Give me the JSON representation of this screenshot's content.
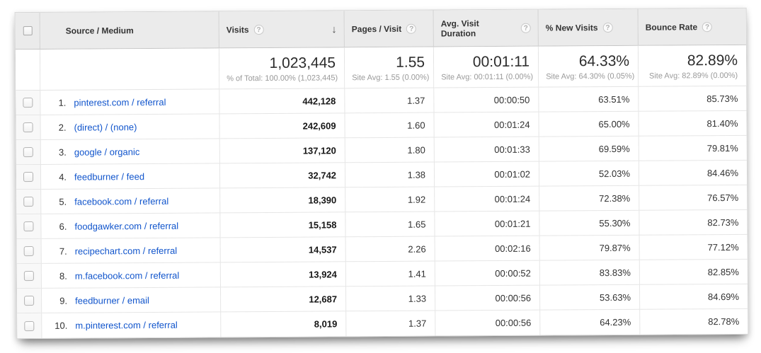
{
  "colors": {
    "link": "#1155cc",
    "header_bg": "#ebebeb",
    "row_border": "#e6e6e6",
    "value_text": "#333333",
    "muted_text": "#9a9a9a"
  },
  "icons": {
    "help": "?",
    "sort_descending": "↓"
  },
  "table": {
    "columns": [
      {
        "key": "source",
        "label": "Source / Medium"
      },
      {
        "key": "visits",
        "label": "Visits"
      },
      {
        "key": "pages",
        "label": "Pages / Visit"
      },
      {
        "key": "duration",
        "label": "Avg. Visit Duration"
      },
      {
        "key": "new_visits",
        "label": "% New Visits"
      },
      {
        "key": "bounce",
        "label": "Bounce Rate"
      }
    ],
    "sorted_column": "visits",
    "sort_direction": "descending",
    "summary": {
      "visits": {
        "value": "1,023,445",
        "sub": "% of Total: 100.00% (1,023,445)"
      },
      "pages": {
        "value": "1.55",
        "sub": "Site Avg: 1.55 (0.00%)"
      },
      "duration": {
        "value": "00:01:11",
        "sub": "Site Avg: 00:01:11 (0.00%)"
      },
      "new_visits": {
        "value": "64.33%",
        "sub": "Site Avg: 64.30% (0.05%)"
      },
      "bounce": {
        "value": "82.89%",
        "sub": "Site Avg: 82.89% (0.00%)"
      }
    },
    "rows": [
      {
        "rank": "1.",
        "source": "pinterest.com / referral",
        "visits": "442,128",
        "pages": "1.37",
        "duration": "00:00:50",
        "new_visits": "63.51%",
        "bounce": "85.73%"
      },
      {
        "rank": "2.",
        "source": "(direct) / (none)",
        "visits": "242,609",
        "pages": "1.60",
        "duration": "00:01:24",
        "new_visits": "65.00%",
        "bounce": "81.40%"
      },
      {
        "rank": "3.",
        "source": "google / organic",
        "visits": "137,120",
        "pages": "1.80",
        "duration": "00:01:33",
        "new_visits": "69.59%",
        "bounce": "79.81%"
      },
      {
        "rank": "4.",
        "source": "feedburner / feed",
        "visits": "32,742",
        "pages": "1.38",
        "duration": "00:01:02",
        "new_visits": "52.03%",
        "bounce": "84.46%"
      },
      {
        "rank": "5.",
        "source": "facebook.com / referral",
        "visits": "18,390",
        "pages": "1.92",
        "duration": "00:01:24",
        "new_visits": "72.38%",
        "bounce": "76.57%"
      },
      {
        "rank": "6.",
        "source": "foodgawker.com / referral",
        "visits": "15,158",
        "pages": "1.65",
        "duration": "00:01:21",
        "new_visits": "55.30%",
        "bounce": "82.73%"
      },
      {
        "rank": "7.",
        "source": "recipechart.com / referral",
        "visits": "14,537",
        "pages": "2.26",
        "duration": "00:02:16",
        "new_visits": "79.87%",
        "bounce": "77.12%"
      },
      {
        "rank": "8.",
        "source": "m.facebook.com / referral",
        "visits": "13,924",
        "pages": "1.41",
        "duration": "00:00:52",
        "new_visits": "83.83%",
        "bounce": "82.85%"
      },
      {
        "rank": "9.",
        "source": "feedburner / email",
        "visits": "12,687",
        "pages": "1.33",
        "duration": "00:00:56",
        "new_visits": "53.63%",
        "bounce": "84.69%"
      },
      {
        "rank": "10.",
        "source": "m.pinterest.com / referral",
        "visits": "8,019",
        "pages": "1.37",
        "duration": "00:00:56",
        "new_visits": "64.23%",
        "bounce": "82.78%"
      }
    ]
  }
}
